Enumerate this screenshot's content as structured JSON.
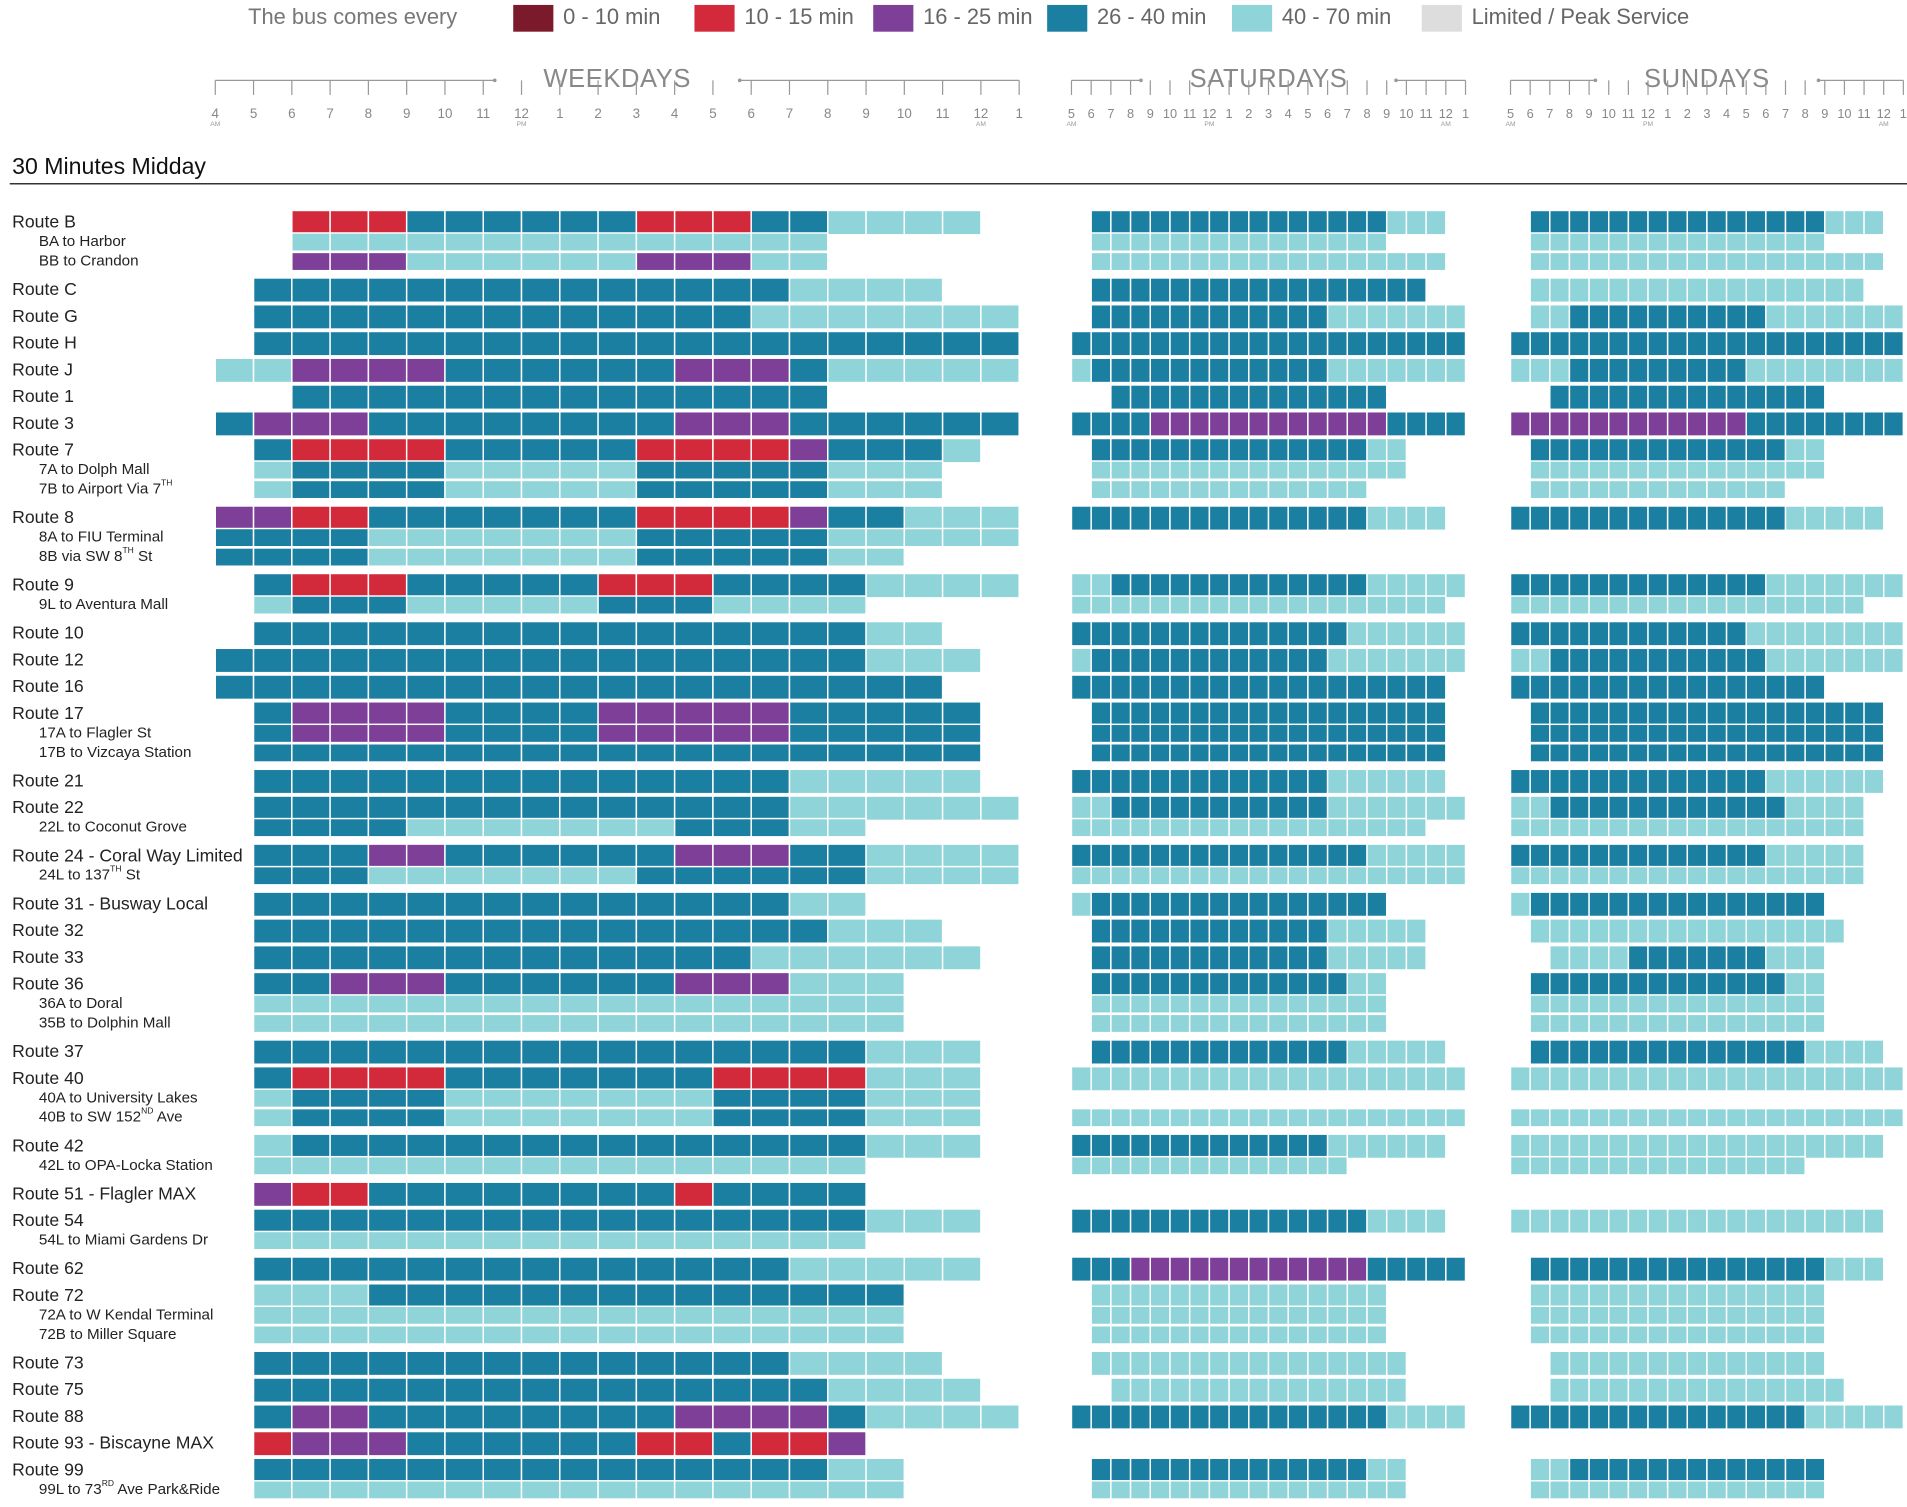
{
  "chart_data": {
    "type": "heatmap",
    "legend_title": "The bus comes every",
    "levels": [
      {
        "label": "0 - 10 min",
        "color": "#7a1a2b"
      },
      {
        "label": "10 - 15 min",
        "color": "#d22a3b"
      },
      {
        "label": "16 - 25 min",
        "color": "#7d3f97"
      },
      {
        "label": "26 - 40 min",
        "color": "#1b7fa2"
      },
      {
        "label": "40 - 70 min",
        "color": "#8fd4d9"
      },
      {
        "label": "Limited / Peak Service",
        "color": "#dddddd"
      }
    ],
    "days": [
      {
        "name": "WEEKDAYS",
        "ticks": [
          {
            "label": "4",
            "note": "AM"
          },
          "5",
          "6",
          "7",
          "8",
          "9",
          "10",
          "11",
          {
            "label": "12",
            "note": "PM"
          },
          "1",
          "2",
          "3",
          "4",
          "5",
          "6",
          "7",
          "8",
          "9",
          "10",
          "11",
          {
            "label": "12",
            "note": "AM"
          },
          "1"
        ]
      },
      {
        "name": "SATURDAYS",
        "ticks": [
          {
            "label": "5",
            "note": "AM"
          },
          "6",
          "7",
          "8",
          "9",
          "10",
          "11",
          {
            "label": "12",
            "note": "PM"
          },
          "1",
          "2",
          "3",
          "4",
          "5",
          "6",
          "7",
          "8",
          "9",
          "10",
          "11",
          {
            "label": "12",
            "note": "AM"
          },
          "1"
        ]
      },
      {
        "name": "SUNDAYS",
        "ticks": [
          {
            "label": "5",
            "note": "AM"
          },
          "6",
          "7",
          "8",
          "9",
          "10",
          "11",
          {
            "label": "12",
            "note": "PM"
          },
          "1",
          "2",
          "3",
          "4",
          "5",
          "6",
          "7",
          "8",
          "9",
          "10",
          "11",
          {
            "label": "12",
            "note": "AM"
          },
          "1"
        ]
      }
    ],
    "section_title": "30 Minutes Midday",
    "rows": [
      {
        "label": "Route B",
        "cells": [
          "--111333333111334444-",
          "-333333333333333444-",
          "-333333333333333444-"
        ]
      },
      {
        "label": "BA to Harbor",
        "sub": true,
        "cells": [
          "--44444444444444-----",
          "-444444444444444----",
          "-444444444444444----"
        ]
      },
      {
        "label": "BB to Crandon",
        "sub": true,
        "cells": [
          "--22244444422244-----",
          "-444444444444444444-",
          "-444444444444444444-"
        ]
      },
      {
        "label": "Route C",
        "cells": [
          "-333333333333334444--",
          "-33333333333333333--",
          "-44444444444444444--"
        ]
      },
      {
        "label": "Route G",
        "cells": [
          "-33333333333334444444",
          "-3333333333334444444",
          "-4433333333334444444"
        ]
      },
      {
        "label": "Route H",
        "cells": [
          "-33333333333333333333",
          "33333333333333333333",
          "33333333333333333333"
        ]
      },
      {
        "label": "Route J",
        "cells": [
          "442222333333222344444",
          "43333333333334444444",
          "44433333333344444444"
        ]
      },
      {
        "label": "Route 1",
        "cells": [
          "--33333333333333-----",
          "--33333333333333----",
          "--33333333333333----"
        ]
      },
      {
        "label": "Route 3",
        "cells": [
          "322233333333222333333",
          "33332222222222223333",
          "22222222222233333333"
        ]
      },
      {
        "label": "Route 7",
        "cells": [
          "-3111133333111123334-",
          "-3333333333333344---",
          "-333333333333344----"
        ]
      },
      {
        "label": "7A to Dolph Mall",
        "sub": true,
        "cells": [
          "-433334444433333444--",
          "-4444444444444444---",
          "-444444444444444----"
        ]
      },
      {
        "label": "7B to Airport Via 7",
        "sup": "TH",
        "sub": true,
        "cells": [
          "-433334444433333444--",
          "-44444444444444-----",
          "-4444444444444------"
        ]
      },
      {
        "label": "Route 8",
        "cells": [
          "221133333331111233444",
          "3333333333333334444-",
          "3333333333333344444-"
        ]
      },
      {
        "label": "8A to FIU Terminal",
        "sub": true,
        "cells": [
          "333344444443333344444",
          "--------------------",
          "--------------------"
        ]
      },
      {
        "label": "8B via SW 8",
        "sup": "TH",
        "after": " St",
        "sub": true,
        "cells": [
          "333344444443333344---",
          "--------------------",
          "--------------------"
        ]
      },
      {
        "label": "Route 9",
        "cells": [
          "-31113333311133334444",
          "44333333333333344444",
          "33333333333334444444"
        ]
      },
      {
        "label": "9L to Aventura Mall",
        "sub": true,
        "cells": [
          "-4333444443334444----",
          "4444444444444444444-",
          "444444444444444444--"
        ]
      },
      {
        "label": "Route 10",
        "cells": [
          "-333333333333333344--",
          "33333333333333444444",
          "33333333333344444444"
        ]
      },
      {
        "label": "Route 12",
        "cells": [
          "33333333333333333444-",
          "43333333333334444444",
          "44333333333334444444"
        ]
      },
      {
        "label": "Route 16",
        "cells": [
          "3333333333333333333--",
          "3333333333333333333-",
          "3333333333333333----"
        ]
      },
      {
        "label": "Route 17",
        "cells": [
          "-3222233332222233333-",
          "-333333333333333333-",
          "-333333333333333333-"
        ]
      },
      {
        "label": "17A to Flagler St",
        "sub": true,
        "cells": [
          "-3222233332222233333-",
          "-333333333333333333-",
          "-333333333333333333-"
        ]
      },
      {
        "label": "17B to Vizcaya Station",
        "sub": true,
        "cells": [
          "-3333333333333333333-",
          "-333333333333333333-",
          "-333333333333333333-"
        ]
      },
      {
        "label": "Route 21",
        "cells": [
          "-3333333333333344444-",
          "3333333333333444444-",
          "3333333333333444444-"
        ]
      },
      {
        "label": "Route 22",
        "cells": [
          "-33333333333333444444",
          "44333333333334444444",
          "443333333333334444--"
        ]
      },
      {
        "label": "22L to Coconut Grove",
        "sub": true,
        "cells": [
          "-3333444444433344----",
          "444444444444444444--",
          "444444444444444444--"
        ]
      },
      {
        "label": "Route 24 - Coral Way Limited",
        "cells": [
          "-33322333333222334444",
          "33333333333333344444",
          "333333333333344444--"
        ]
      },
      {
        "label": "24L to 137",
        "sup": "TH",
        "after": " St",
        "sub": true,
        "cells": [
          "-33344444443333334444",
          "44444444444444444444",
          "444444444444444444--"
        ]
      },
      {
        "label": "Route 31 - Busway Local",
        "cells": [
          "-3333333333333344----",
          "4333333333333333----",
          "4333333333333333----"
        ]
      },
      {
        "label": "Route 32",
        "cells": [
          "-333333333333333444--",
          "-33333333333344444--",
          "-4444444444444444---"
        ]
      },
      {
        "label": "Route 33",
        "cells": [
          "-3333333333333444444-",
          "-33333333333344444--",
          "--44443333333444----"
        ]
      },
      {
        "label": "Route 36",
        "cells": [
          "-33222333333222444---",
          "-333333333333344----",
          "-333333333333344----"
        ]
      },
      {
        "label": "36A to Doral",
        "sub": true,
        "cells": [
          "-44444444444444444---",
          "-444444444444444----",
          "-444444444444444----"
        ]
      },
      {
        "label": "35B to Dolphin Mall",
        "sub": true,
        "cells": [
          "-44444444444444444---",
          "-444444444444444----",
          "-444444444444444----"
        ]
      },
      {
        "label": "Route 37",
        "cells": [
          "-3333333333333333444-",
          "-333333333333344444-",
          "-333333333333334444-"
        ]
      },
      {
        "label": "Route 40",
        "cells": [
          "-3111133333331111444-",
          "44444444444444444444",
          "44444444444444444444"
        ]
      },
      {
        "label": "40A to University Lakes",
        "sub": true,
        "cells": [
          "-4333344444443333444-",
          "--------------------",
          "--------------------"
        ]
      },
      {
        "label": "40B to SW 152",
        "sup": "ND",
        "after": " Ave",
        "sub": true,
        "cells": [
          "-4333344444443333444-",
          "44444444444444444444",
          "44444444444444444444"
        ]
      },
      {
        "label": "Route 42",
        "cells": [
          "-4333333333333333444-",
          "3333333333333444444-",
          "4444444444444444444-"
        ]
      },
      {
        "label": "42L to OPA-Locka Station",
        "sub": true,
        "cells": [
          "-4444444444444444----",
          "44444444444444------",
          "444444444444444-----"
        ]
      },
      {
        "label": "Route 51 - Flagler MAX",
        "cells": [
          "-2113333333313333----",
          "--------------------",
          "--------------------"
        ]
      },
      {
        "label": "Route 54",
        "cells": [
          "-3333333333333333444-",
          "3333333333333334444-",
          "4444444444444444444-"
        ]
      },
      {
        "label": "54L to Miami Gardens Dr",
        "sub": true,
        "cells": [
          "-4444444444444444----",
          "--------------------",
          "--------------------"
        ]
      },
      {
        "label": "Route 62",
        "cells": [
          "-3333333333333344444-",
          "33322222222222233333",
          "-333333333333333444-"
        ]
      },
      {
        "label": "Route 72",
        "cells": [
          "-44433333333333333---",
          "-444444444444444----",
          "-444444444444444----"
        ]
      },
      {
        "label": "72A to W Kendal Terminal",
        "sub": true,
        "cells": [
          "-44444444444444444---",
          "-444444444444444----",
          "-444444444444444----"
        ]
      },
      {
        "label": "72B to Miller Square",
        "sub": true,
        "cells": [
          "-44444444444444444---",
          "-444444444444444----",
          "-444444444444444----"
        ]
      },
      {
        "label": "Route 73",
        "cells": [
          "-333333333333334444--",
          "-4444444444444444---",
          "--44444444444444----"
        ]
      },
      {
        "label": "Route 75",
        "cells": [
          "-3333333333333334444-",
          "--444444444444444---",
          "--444444444444444---"
        ]
      },
      {
        "label": "Route 88",
        "cells": [
          "-32233333333222234444",
          "33333333333333334444",
          "33333333333333344444"
        ]
      },
      {
        "label": "Route 93 - Biscayne MAX",
        "cells": [
          "-1222333333113112----",
          "--------------------",
          "--------------------"
        ]
      },
      {
        "label": "Route 99",
        "cells": [
          "-33333333333333344---",
          "-3333333333333344---",
          "-443333333333333----"
        ]
      },
      {
        "label": "99L to 73",
        "sup": "RD",
        "after": " Ave Park&Ride",
        "sub": true,
        "cells": [
          "-44444444444444444---",
          "-4444444444444444---",
          "-444444444444444----"
        ]
      }
    ]
  }
}
